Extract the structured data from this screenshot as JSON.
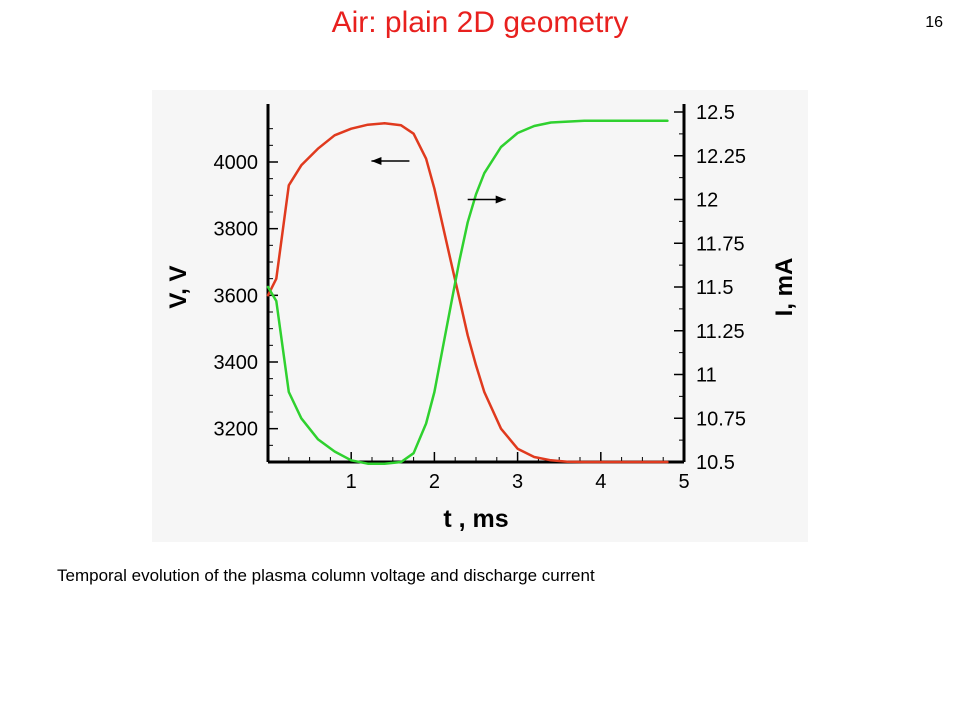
{
  "slide": {
    "title": "Air: plain 2D geometry",
    "number": "16",
    "caption": "Temporal evolution of the plasma column voltage and discharge current"
  },
  "colors": {
    "title": "#e8201e",
    "voltage_series": "#e03a1e",
    "current_series": "#2fd12f",
    "axis": "#000000"
  },
  "chart_data": {
    "type": "line",
    "xlabel": "t , ms",
    "ylabel_left": "V, V",
    "ylabel_right": "I, mA",
    "xlim": [
      0,
      5
    ],
    "ylim_left": [
      3100,
      4150
    ],
    "ylim_right": [
      10.5,
      12.5
    ],
    "x_ticks": [
      "1",
      "2",
      "3",
      "4",
      "5"
    ],
    "y_left_ticks": [
      "3200",
      "3400",
      "3600",
      "3800",
      "4000"
    ],
    "y_right_ticks": [
      "10.5",
      "10.75",
      "11",
      "11.25",
      "11.5",
      "11.75",
      "12",
      "12.25",
      "12.5"
    ],
    "grid": false,
    "annotations": [
      {
        "text": "",
        "direction": "left",
        "points_to": "V, V",
        "x": 1.7,
        "y": 4003
      },
      {
        "text": "",
        "direction": "right",
        "points_to": "I, mA",
        "x": 2.4,
        "y": 12.0
      }
    ],
    "series": [
      {
        "axis": "left",
        "color": "#e03a1e",
        "x": [
          0,
          0.1,
          0.25,
          0.4,
          0.6,
          0.8,
          1.0,
          1.2,
          1.4,
          1.6,
          1.75,
          1.9,
          2.0,
          2.1,
          2.2,
          2.3,
          2.4,
          2.5,
          2.6,
          2.8,
          3.0,
          3.2,
          3.4,
          3.6,
          3.8,
          4.0,
          4.5,
          4.8
        ],
        "values": [
          3600,
          3650,
          3930,
          3990,
          4040,
          4080,
          4100,
          4112,
          4116,
          4110,
          4085,
          4010,
          3920,
          3810,
          3700,
          3590,
          3480,
          3390,
          3310,
          3200,
          3140,
          3115,
          3105,
          3101,
          3100,
          3100,
          3100,
          3100
        ]
      },
      {
        "axis": "right",
        "color": "#2fd12f",
        "x": [
          0,
          0.1,
          0.25,
          0.4,
          0.6,
          0.8,
          1.0,
          1.2,
          1.4,
          1.6,
          1.75,
          1.9,
          2.0,
          2.1,
          2.2,
          2.3,
          2.4,
          2.5,
          2.6,
          2.8,
          3.0,
          3.2,
          3.4,
          3.6,
          3.8,
          4.0,
          4.5,
          4.8
        ],
        "values": [
          11.5,
          11.42,
          10.9,
          10.75,
          10.63,
          10.56,
          10.51,
          10.49,
          10.49,
          10.5,
          10.55,
          10.72,
          10.9,
          11.15,
          11.4,
          11.65,
          11.87,
          12.03,
          12.15,
          12.3,
          12.38,
          12.42,
          12.44,
          12.445,
          12.45,
          12.45,
          12.45,
          12.45
        ]
      }
    ]
  }
}
